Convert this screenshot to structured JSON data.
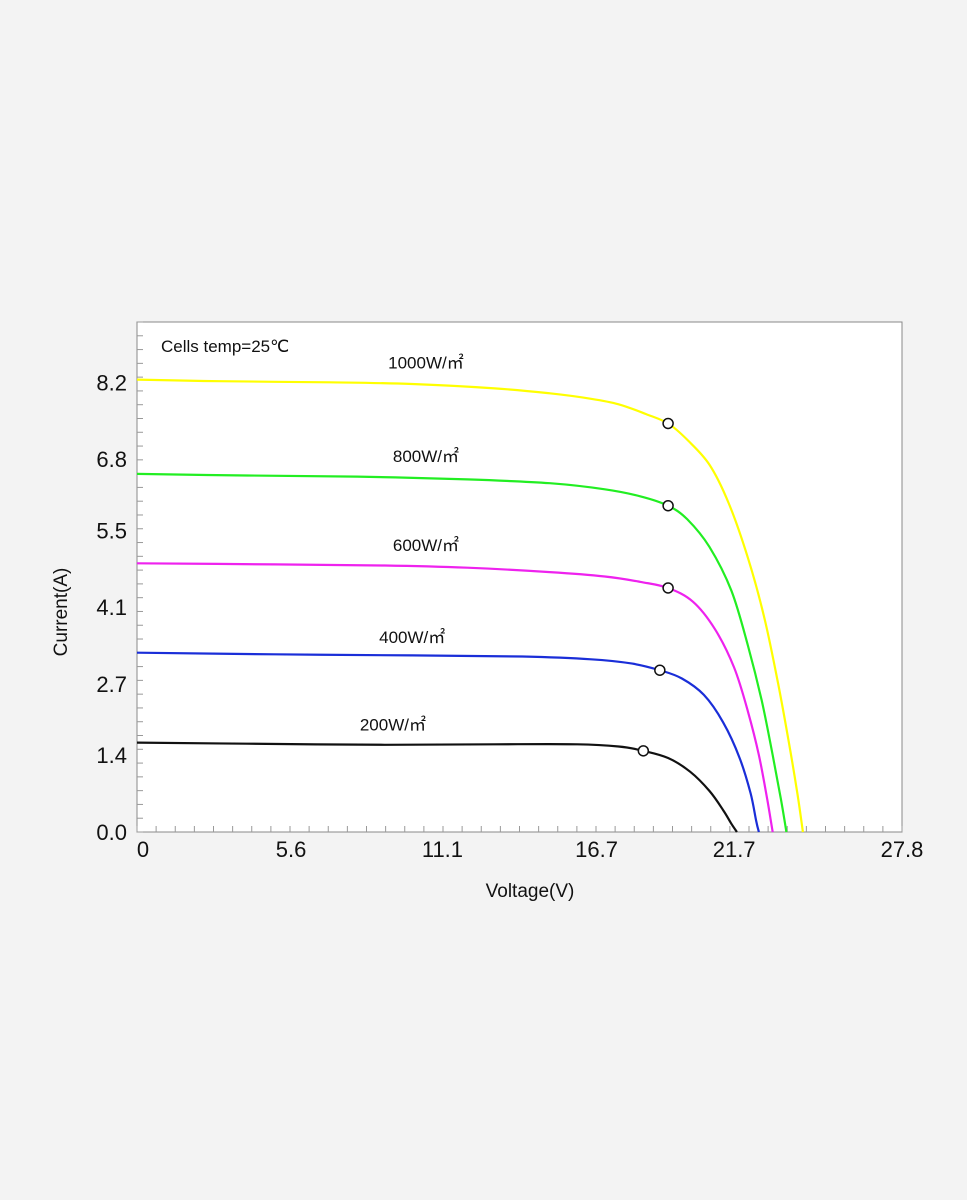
{
  "chart_data": {
    "type": "line",
    "title": "",
    "annotation": "Cells temp=25℃",
    "xlabel": "Voltage(V)",
    "ylabel": "Current(A)",
    "xlim": [
      0,
      27.8
    ],
    "ylim": [
      0,
      9.3
    ],
    "x_ticks": [
      0,
      5.6,
      11.1,
      16.7,
      21.7,
      27.8
    ],
    "x_tick_labels": [
      "0",
      "5.6",
      "11.1",
      "16.7",
      "21.7",
      "27.8"
    ],
    "y_ticks": [
      0.0,
      1.4,
      2.7,
      4.1,
      5.5,
      6.8,
      8.2
    ],
    "y_tick_labels": [
      "0.0",
      "1.4",
      "2.7",
      "4.1",
      "5.5",
      "6.8",
      "8.2"
    ],
    "series": [
      {
        "name": "1000W/㎡",
        "color": "#ffff00",
        "label_at": [
          10.5,
          8.45
        ],
        "mpp": [
          19.3,
          7.45
        ],
        "points": [
          [
            0,
            8.25
          ],
          [
            3,
            8.22
          ],
          [
            7,
            8.2
          ],
          [
            10,
            8.17
          ],
          [
            13,
            8.09
          ],
          [
            15,
            8.0
          ],
          [
            16.5,
            7.9
          ],
          [
            17.5,
            7.8
          ],
          [
            18.5,
            7.62
          ],
          [
            19.3,
            7.45
          ],
          [
            20.0,
            7.15
          ],
          [
            20.8,
            6.7
          ],
          [
            21.5,
            6.0
          ],
          [
            22.2,
            5.0
          ],
          [
            22.8,
            3.9
          ],
          [
            23.3,
            2.7
          ],
          [
            23.7,
            1.6
          ],
          [
            24.0,
            0.7
          ],
          [
            24.2,
            0.0
          ]
        ]
      },
      {
        "name": "800W/㎡",
        "color": "#22ee22",
        "label_at": [
          10.5,
          6.75
        ],
        "mpp": [
          19.3,
          5.95
        ],
        "points": [
          [
            0,
            6.53
          ],
          [
            4,
            6.5
          ],
          [
            8,
            6.48
          ],
          [
            12,
            6.43
          ],
          [
            15,
            6.36
          ],
          [
            17,
            6.25
          ],
          [
            18.3,
            6.12
          ],
          [
            19.3,
            5.95
          ],
          [
            20.0,
            5.7
          ],
          [
            20.8,
            5.2
          ],
          [
            21.6,
            4.4
          ],
          [
            22.2,
            3.4
          ],
          [
            22.7,
            2.4
          ],
          [
            23.1,
            1.4
          ],
          [
            23.4,
            0.6
          ],
          [
            23.6,
            0.0
          ]
        ]
      },
      {
        "name": "600W/㎡",
        "color": "#ee22ee",
        "label_at": [
          10.5,
          5.12
        ],
        "mpp": [
          19.3,
          4.45
        ],
        "points": [
          [
            0,
            4.9
          ],
          [
            5,
            4.88
          ],
          [
            9,
            4.86
          ],
          [
            12,
            4.82
          ],
          [
            15,
            4.74
          ],
          [
            17,
            4.66
          ],
          [
            18.3,
            4.56
          ],
          [
            19.3,
            4.45
          ],
          [
            20.2,
            4.2
          ],
          [
            21.0,
            3.7
          ],
          [
            21.7,
            3.0
          ],
          [
            22.2,
            2.2
          ],
          [
            22.6,
            1.4
          ],
          [
            22.9,
            0.6
          ],
          [
            23.1,
            0.0
          ]
        ]
      },
      {
        "name": "400W/㎡",
        "color": "#1a2ed8",
        "label_at": [
          10.0,
          3.45
        ],
        "mpp": [
          19.0,
          2.95
        ],
        "points": [
          [
            0,
            3.27
          ],
          [
            5,
            3.24
          ],
          [
            10,
            3.22
          ],
          [
            14,
            3.2
          ],
          [
            16.5,
            3.15
          ],
          [
            18,
            3.07
          ],
          [
            19.0,
            2.95
          ],
          [
            19.8,
            2.8
          ],
          [
            20.6,
            2.5
          ],
          [
            21.3,
            2.0
          ],
          [
            21.9,
            1.35
          ],
          [
            22.3,
            0.7
          ],
          [
            22.5,
            0.2
          ],
          [
            22.6,
            0.0
          ]
        ]
      },
      {
        "name": "200W/㎡",
        "color": "#111111",
        "label_at": [
          9.3,
          1.85
        ],
        "mpp": [
          18.4,
          1.48
        ],
        "points": [
          [
            0,
            1.63
          ],
          [
            4,
            1.61
          ],
          [
            9,
            1.59
          ],
          [
            13,
            1.6
          ],
          [
            16,
            1.6
          ],
          [
            17.5,
            1.56
          ],
          [
            18.4,
            1.48
          ],
          [
            19.3,
            1.35
          ],
          [
            20.1,
            1.1
          ],
          [
            20.8,
            0.75
          ],
          [
            21.3,
            0.4
          ],
          [
            21.6,
            0.15
          ],
          [
            21.8,
            0.0
          ]
        ]
      }
    ]
  }
}
